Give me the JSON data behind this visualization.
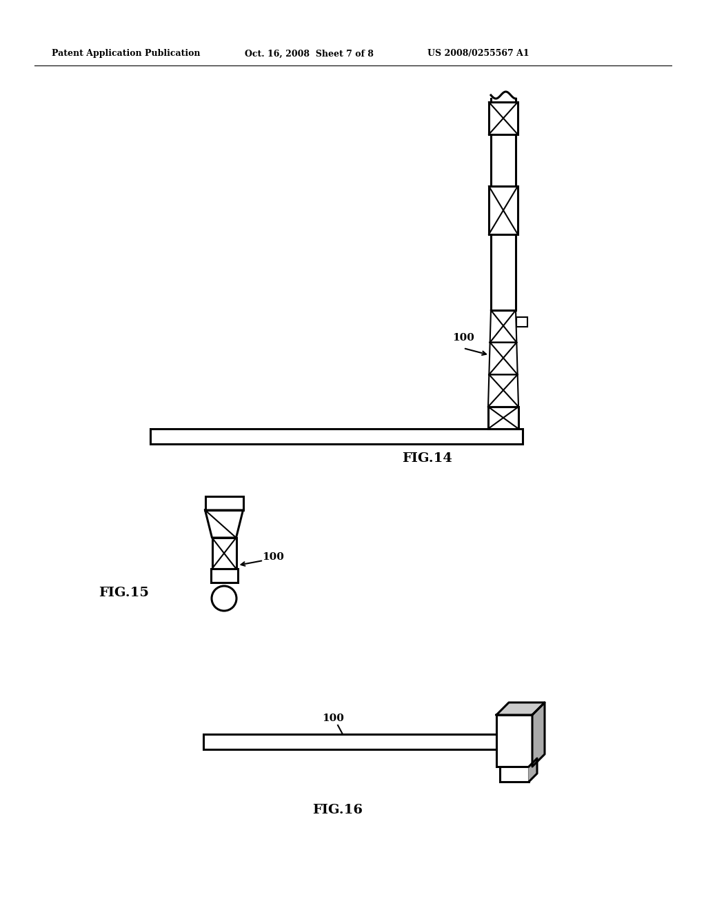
{
  "background_color": "#ffffff",
  "header_left": "Patent Application Publication",
  "header_mid": "Oct. 16, 2008  Sheet 7 of 8",
  "header_right": "US 2008/0255567 A1",
  "fig14_label": "FIG.14",
  "fig15_label": "FIG.15",
  "fig16_label": "FIG.16",
  "label_100": "100",
  "line_color": "#000000",
  "lw": 1.5,
  "lw2": 2.2
}
